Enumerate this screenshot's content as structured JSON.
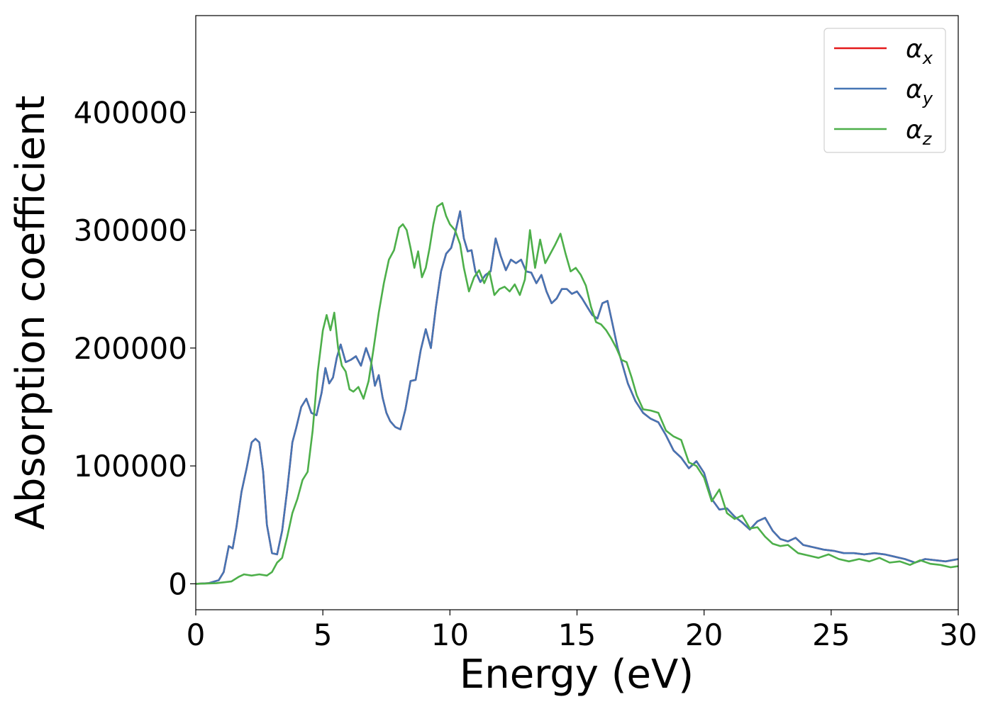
{
  "chart_data": {
    "type": "line",
    "title": "",
    "xlabel": "Energy (eV)",
    "ylabel": "Absorption coefficient",
    "xlim": [
      0,
      30
    ],
    "ylim": [
      -22000,
      482000
    ],
    "xticks": [
      0,
      5,
      10,
      15,
      20,
      25,
      30
    ],
    "yticks": [
      0,
      100000,
      200000,
      300000,
      400000
    ],
    "grid": false,
    "legend": {
      "placement": "top-right"
    },
    "series": [
      {
        "name": "α_x",
        "legend_symbol": "α",
        "legend_sub": "x",
        "color": "#e41a1c",
        "x": [
          0,
          0.5,
          0.9,
          1.1,
          1.3,
          1.45,
          1.6,
          1.8,
          2.0,
          2.2,
          2.35,
          2.5,
          2.65,
          2.8,
          3.0,
          3.2,
          3.4,
          3.6,
          3.8,
          3.95,
          4.15,
          4.35,
          4.55,
          4.75,
          4.95,
          5.1,
          5.25,
          5.4,
          5.55,
          5.7,
          5.9,
          6.1,
          6.3,
          6.5,
          6.7,
          6.9,
          7.05,
          7.2,
          7.35,
          7.5,
          7.65,
          7.85,
          8.05,
          8.25,
          8.45,
          8.65,
          8.85,
          9.05,
          9.25,
          9.45,
          9.65,
          9.85,
          10.05,
          10.2,
          10.4,
          10.55,
          10.7,
          10.85,
          11.0,
          11.2,
          11.4,
          11.6,
          11.8,
          12.0,
          12.2,
          12.4,
          12.6,
          12.8,
          13.0,
          13.2,
          13.4,
          13.6,
          13.8,
          14.0,
          14.2,
          14.4,
          14.6,
          14.8,
          15.0,
          15.2,
          15.4,
          15.6,
          15.8,
          16.0,
          16.2,
          16.4,
          16.6,
          16.8,
          17.0,
          17.3,
          17.6,
          17.9,
          18.2,
          18.5,
          18.8,
          19.1,
          19.4,
          19.7,
          20.0,
          20.3,
          20.6,
          20.9,
          21.2,
          21.5,
          21.8,
          22.1,
          22.4,
          22.7,
          23.0,
          23.3,
          23.6,
          23.9,
          24.3,
          24.7,
          25.1,
          25.5,
          25.9,
          26.3,
          26.7,
          27.1,
          27.5,
          27.9,
          28.3,
          28.7,
          29.1,
          29.5,
          30.0
        ],
        "y": [
          0,
          500,
          3000,
          10000,
          32000,
          30000,
          48000,
          78000,
          98000,
          120000,
          123000,
          120000,
          95000,
          50000,
          26000,
          25000,
          45000,
          80000,
          120000,
          132000,
          150000,
          157000,
          145000,
          143000,
          162000,
          183000,
          170000,
          175000,
          192000,
          203000,
          188000,
          190000,
          193000,
          185000,
          200000,
          188000,
          168000,
          177000,
          158000,
          145000,
          138000,
          133000,
          131000,
          148000,
          172000,
          173000,
          198000,
          216000,
          200000,
          235000,
          265000,
          280000,
          285000,
          297000,
          316000,
          293000,
          282000,
          283000,
          265000,
          256000,
          262000,
          265000,
          293000,
          278000,
          266000,
          275000,
          272000,
          275000,
          265000,
          264000,
          255000,
          262000,
          248000,
          238000,
          242000,
          250000,
          250000,
          246000,
          248000,
          242000,
          235000,
          228000,
          225000,
          238000,
          240000,
          220000,
          200000,
          185000,
          170000,
          155000,
          145000,
          140000,
          137000,
          126000,
          113000,
          107000,
          98000,
          104000,
          94000,
          72000,
          63000,
          64000,
          57000,
          52000,
          46000,
          53000,
          56000,
          45000,
          38000,
          36000,
          39000,
          33000,
          31000,
          29000,
          28000,
          26000,
          26000,
          25000,
          26000,
          25000,
          23000,
          21000,
          18000,
          21000,
          20000,
          19000,
          21000
        ]
      },
      {
        "name": "α_y",
        "legend_symbol": "α",
        "legend_sub": "y",
        "color": "#4575b4",
        "x": [
          0,
          0.5,
          0.9,
          1.1,
          1.3,
          1.45,
          1.6,
          1.8,
          2.0,
          2.2,
          2.35,
          2.5,
          2.65,
          2.8,
          3.0,
          3.2,
          3.4,
          3.6,
          3.8,
          3.95,
          4.15,
          4.35,
          4.55,
          4.75,
          4.95,
          5.1,
          5.25,
          5.4,
          5.55,
          5.7,
          5.9,
          6.1,
          6.3,
          6.5,
          6.7,
          6.9,
          7.05,
          7.2,
          7.35,
          7.5,
          7.65,
          7.85,
          8.05,
          8.25,
          8.45,
          8.65,
          8.85,
          9.05,
          9.25,
          9.45,
          9.65,
          9.85,
          10.05,
          10.2,
          10.4,
          10.55,
          10.7,
          10.85,
          11.0,
          11.2,
          11.4,
          11.6,
          11.8,
          12.0,
          12.2,
          12.4,
          12.6,
          12.8,
          13.0,
          13.2,
          13.4,
          13.6,
          13.8,
          14.0,
          14.2,
          14.4,
          14.6,
          14.8,
          15.0,
          15.2,
          15.4,
          15.6,
          15.8,
          16.0,
          16.2,
          16.4,
          16.6,
          16.8,
          17.0,
          17.3,
          17.6,
          17.9,
          18.2,
          18.5,
          18.8,
          19.1,
          19.4,
          19.7,
          20.0,
          20.3,
          20.6,
          20.9,
          21.2,
          21.5,
          21.8,
          22.1,
          22.4,
          22.7,
          23.0,
          23.3,
          23.6,
          23.9,
          24.3,
          24.7,
          25.1,
          25.5,
          25.9,
          26.3,
          26.7,
          27.1,
          27.5,
          27.9,
          28.3,
          28.7,
          29.1,
          29.5,
          30.0
        ],
        "y": [
          0,
          500,
          3000,
          10000,
          32000,
          30000,
          48000,
          78000,
          98000,
          120000,
          123000,
          120000,
          95000,
          50000,
          26000,
          25000,
          45000,
          80000,
          120000,
          132000,
          150000,
          157000,
          145000,
          143000,
          162000,
          183000,
          170000,
          175000,
          192000,
          203000,
          188000,
          190000,
          193000,
          185000,
          200000,
          188000,
          168000,
          177000,
          158000,
          145000,
          138000,
          133000,
          131000,
          148000,
          172000,
          173000,
          198000,
          216000,
          200000,
          235000,
          265000,
          280000,
          285000,
          297000,
          316000,
          293000,
          282000,
          283000,
          265000,
          256000,
          262000,
          265000,
          293000,
          278000,
          266000,
          275000,
          272000,
          275000,
          265000,
          264000,
          255000,
          262000,
          248000,
          238000,
          242000,
          250000,
          250000,
          246000,
          248000,
          242000,
          235000,
          228000,
          225000,
          238000,
          240000,
          220000,
          200000,
          185000,
          170000,
          155000,
          145000,
          140000,
          137000,
          126000,
          113000,
          107000,
          98000,
          104000,
          94000,
          72000,
          63000,
          64000,
          57000,
          52000,
          46000,
          53000,
          56000,
          45000,
          38000,
          36000,
          39000,
          33000,
          31000,
          29000,
          28000,
          26000,
          26000,
          25000,
          26000,
          25000,
          23000,
          21000,
          18000,
          21000,
          20000,
          19000,
          21000
        ]
      },
      {
        "name": "α_z",
        "legend_symbol": "α",
        "legend_sub": "z",
        "color": "#4daf4a",
        "x": [
          0,
          0.8,
          1.4,
          1.7,
          1.9,
          2.2,
          2.5,
          2.8,
          3.0,
          3.2,
          3.4,
          3.6,
          3.8,
          4.0,
          4.2,
          4.4,
          4.6,
          4.8,
          5.0,
          5.15,
          5.3,
          5.45,
          5.6,
          5.75,
          5.9,
          6.05,
          6.2,
          6.4,
          6.6,
          6.8,
          7.0,
          7.2,
          7.4,
          7.6,
          7.8,
          8.0,
          8.15,
          8.3,
          8.45,
          8.6,
          8.75,
          8.9,
          9.05,
          9.2,
          9.35,
          9.5,
          9.7,
          9.85,
          10.0,
          10.2,
          10.4,
          10.55,
          10.75,
          10.95,
          11.15,
          11.35,
          11.55,
          11.75,
          11.95,
          12.15,
          12.35,
          12.55,
          12.75,
          12.95,
          13.15,
          13.35,
          13.55,
          13.75,
          13.95,
          14.15,
          14.35,
          14.55,
          14.75,
          14.95,
          15.15,
          15.35,
          15.55,
          15.75,
          15.95,
          16.15,
          16.35,
          16.55,
          16.75,
          16.95,
          17.15,
          17.35,
          17.6,
          17.9,
          18.2,
          18.5,
          18.8,
          19.1,
          19.4,
          19.7,
          20.0,
          20.3,
          20.6,
          20.9,
          21.2,
          21.5,
          21.8,
          22.1,
          22.4,
          22.7,
          23.0,
          23.3,
          23.7,
          24.1,
          24.5,
          24.9,
          25.3,
          25.7,
          26.1,
          26.5,
          26.9,
          27.3,
          27.7,
          28.1,
          28.5,
          28.9,
          29.3,
          29.7,
          30.0
        ],
        "y": [
          0,
          500,
          2000,
          6000,
          8000,
          7000,
          8000,
          7000,
          10000,
          18000,
          22000,
          40000,
          60000,
          72000,
          88000,
          95000,
          130000,
          180000,
          215000,
          228000,
          215000,
          230000,
          200000,
          185000,
          180000,
          165000,
          163000,
          167000,
          157000,
          172000,
          200000,
          230000,
          255000,
          275000,
          283000,
          302000,
          305000,
          300000,
          285000,
          268000,
          282000,
          260000,
          268000,
          285000,
          305000,
          320000,
          323000,
          312000,
          305000,
          300000,
          288000,
          268000,
          248000,
          260000,
          266000,
          255000,
          265000,
          245000,
          250000,
          252000,
          248000,
          254000,
          245000,
          258000,
          300000,
          268000,
          292000,
          272000,
          280000,
          288000,
          297000,
          280000,
          265000,
          268000,
          262000,
          253000,
          235000,
          222000,
          220000,
          215000,
          208000,
          200000,
          190000,
          188000,
          175000,
          160000,
          148000,
          147000,
          145000,
          130000,
          125000,
          122000,
          103000,
          100000,
          90000,
          70000,
          80000,
          60000,
          55000,
          58000,
          47000,
          48000,
          40000,
          34000,
          32000,
          33000,
          26000,
          24000,
          22000,
          25000,
          21000,
          19000,
          21000,
          19000,
          22000,
          18000,
          19000,
          16000,
          20000,
          17000,
          16000,
          14000,
          15000
        ]
      }
    ]
  }
}
